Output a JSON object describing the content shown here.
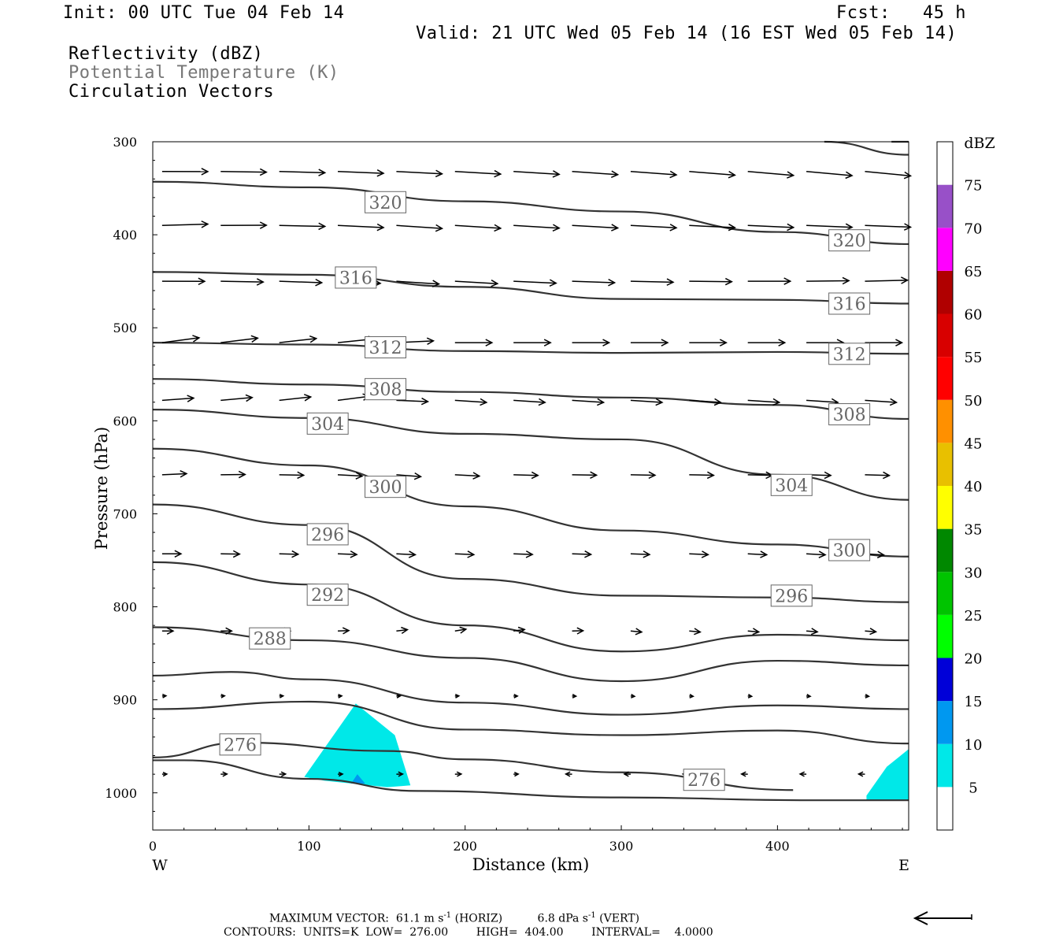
{
  "header": {
    "init": "Init: 00 UTC Tue 04 Feb 14",
    "fcst": "Fcst:   45 h",
    "valid": "Valid: 21 UTC Wed 05 Feb 14 (16 EST Wed 05 Feb 14)",
    "field1": "Reflectivity (dBZ)",
    "field2": "Potential Temperature (K)",
    "field3": "Circulation Vectors"
  },
  "footer": {
    "line1": "MAXIMUM VECTOR:  61.1 m s",
    "line1_sup1": "-1",
    "line1_mid": " (HORIZ)          6.8 dPa s",
    "line1_sup2": "-1",
    "line1_end": " (VERT)",
    "line2": "CONTOURS:  UNITS=K  LOW=  276.00        HIGH=  404.00        INTERVAL=    4.0000"
  },
  "chart_data": {
    "type": "cross-section",
    "xlabel": "Distance (km)",
    "ylabel": "Pressure (hPa)",
    "xlim": [
      0,
      484
    ],
    "ylim": [
      1040,
      300
    ],
    "xticks": [
      0,
      100,
      200,
      300,
      400
    ],
    "yticks": [
      300,
      400,
      500,
      600,
      700,
      800,
      900,
      1000
    ],
    "x_left_label": "W",
    "x_right_label": "E",
    "colorbar": {
      "unit": "dBZ",
      "levels": [
        5,
        10,
        15,
        20,
        25,
        30,
        35,
        40,
        45,
        50,
        55,
        60,
        65,
        70,
        75
      ],
      "colors": [
        "#ffffff",
        "#00e8e8",
        "#0098f0",
        "#0000d8",
        "#00ff00",
        "#00c400",
        "#008800",
        "#ffff00",
        "#e8c000",
        "#ff9000",
        "#ff0000",
        "#d80000",
        "#b00000",
        "#ff00ff",
        "#9850c8",
        "#ffffff"
      ]
    },
    "contour_labels": [
      {
        "value": "320",
        "x": 149,
        "p": 365
      },
      {
        "value": "320",
        "x": 446,
        "p": 406
      },
      {
        "value": "316",
        "x": 130,
        "p": 446
      },
      {
        "value": "316",
        "x": 446,
        "p": 474
      },
      {
        "value": "312",
        "x": 149,
        "p": 521
      },
      {
        "value": "312",
        "x": 446,
        "p": 528
      },
      {
        "value": "308",
        "x": 149,
        "p": 566
      },
      {
        "value": "308",
        "x": 446,
        "p": 593
      },
      {
        "value": "304",
        "x": 112,
        "p": 603
      },
      {
        "value": "304",
        "x": 409,
        "p": 669
      },
      {
        "value": "300",
        "x": 149,
        "p": 671
      },
      {
        "value": "300",
        "x": 446,
        "p": 739
      },
      {
        "value": "296",
        "x": 112,
        "p": 722
      },
      {
        "value": "296",
        "x": 409,
        "p": 788
      },
      {
        "value": "292",
        "x": 112,
        "p": 787
      },
      {
        "value": "288",
        "x": 75,
        "p": 834
      },
      {
        "value": "276",
        "x": 56,
        "p": 948
      },
      {
        "value": "276",
        "x": 353,
        "p": 986
      }
    ],
    "contours": [
      [
        [
          0,
          343
        ],
        [
          100,
          349
        ],
        [
          200,
          364
        ],
        [
          300,
          375
        ],
        [
          400,
          397
        ],
        [
          484,
          410
        ]
      ],
      [
        [
          0,
          440
        ],
        [
          100,
          443
        ],
        [
          200,
          456
        ],
        [
          300,
          469
        ],
        [
          400,
          470
        ],
        [
          484,
          474
        ]
      ],
      [
        [
          0,
          516
        ],
        [
          100,
          518
        ],
        [
          200,
          525
        ],
        [
          300,
          527
        ],
        [
          400,
          526
        ],
        [
          484,
          528
        ]
      ],
      [
        [
          0,
          555
        ],
        [
          100,
          561
        ],
        [
          200,
          569
        ],
        [
          300,
          575
        ],
        [
          400,
          583
        ],
        [
          484,
          598
        ]
      ],
      [
        [
          0,
          588
        ],
        [
          100,
          597
        ],
        [
          200,
          614
        ],
        [
          300,
          620
        ],
        [
          400,
          658
        ],
        [
          484,
          685
        ]
      ],
      [
        [
          0,
          630
        ],
        [
          100,
          648
        ],
        [
          200,
          692
        ],
        [
          300,
          718
        ],
        [
          400,
          733
        ],
        [
          484,
          746
        ]
      ],
      [
        [
          0,
          690
        ],
        [
          100,
          712
        ],
        [
          200,
          770
        ],
        [
          300,
          788
        ],
        [
          400,
          790
        ],
        [
          484,
          795
        ]
      ],
      [
        [
          0,
          752
        ],
        [
          100,
          776
        ],
        [
          200,
          820
        ],
        [
          300,
          848
        ],
        [
          400,
          830
        ],
        [
          484,
          836
        ]
      ],
      [
        [
          0,
          822
        ],
        [
          100,
          836
        ],
        [
          200,
          855
        ],
        [
          300,
          880
        ],
        [
          400,
          858
        ],
        [
          484,
          863
        ]
      ],
      [
        [
          0,
          874
        ],
        [
          50,
          870
        ],
        [
          100,
          878
        ],
        [
          200,
          903
        ],
        [
          300,
          916
        ],
        [
          400,
          906
        ],
        [
          484,
          910
        ]
      ],
      [
        [
          0,
          910
        ],
        [
          100,
          902
        ],
        [
          200,
          932
        ],
        [
          300,
          938
        ],
        [
          400,
          933
        ],
        [
          484,
          947
        ]
      ],
      [
        [
          0,
          962
        ],
        [
          56,
          946
        ],
        [
          150,
          955
        ],
        [
          200,
          964
        ],
        [
          300,
          978
        ],
        [
          410,
          997
        ]
      ],
      [
        [
          0,
          965
        ],
        [
          20,
          965
        ],
        [
          100,
          985
        ],
        [
          170,
          998
        ],
        [
          300,
          1005
        ],
        [
          420,
          1008
        ],
        [
          484,
          1008
        ]
      ],
      [
        [
          473,
          300
        ],
        [
          484,
          300
        ]
      ],
      [
        [
          430,
          300
        ],
        [
          484,
          314
        ]
      ]
    ],
    "dbz_areas": [
      {
        "dbz": 5,
        "points": [
          [
            97,
            983
          ],
          [
            130,
            904
          ],
          [
            155,
            938
          ],
          [
            165,
            992
          ],
          [
            150,
            994
          ],
          [
            110,
            987
          ]
        ]
      },
      {
        "dbz": 10,
        "points": [
          [
            127,
            990
          ],
          [
            131,
            980
          ],
          [
            136,
            990
          ]
        ]
      },
      {
        "dbz": 5,
        "points": [
          [
            457,
            1003
          ],
          [
            470,
            972
          ],
          [
            484,
            953
          ],
          [
            484,
            1008
          ],
          [
            457,
            1008
          ]
        ]
      }
    ],
    "max_vector": {
      "horiz": "61.1 m s-1",
      "vert": "6.8 dPa s-1"
    },
    "contour_info": {
      "units": "K",
      "low": "276.00",
      "high": "404.00",
      "interval": "4.0000"
    }
  }
}
